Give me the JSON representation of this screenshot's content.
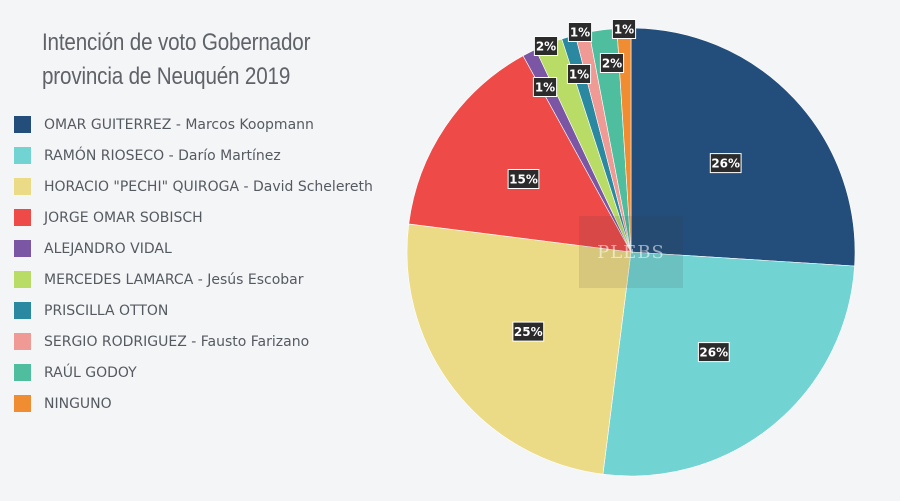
{
  "chart_data": {
    "type": "pie",
    "title": [
      "Intención de voto Gobernador",
      "provincia de Neuquén 2019"
    ],
    "watermark": "PLEBS",
    "legend_position": "left",
    "series": [
      {
        "name": "OMAR GUITERREZ - Marcos Koopmann",
        "value": 26,
        "label": "26%",
        "color": "#234e7c"
      },
      {
        "name": "RAMÓN RIOSECO - Darío Martínez",
        "value": 26,
        "label": "26%",
        "color": "#72d3d3"
      },
      {
        "name": "HORACIO \"PECHI\" QUIROGA - David Schelereth",
        "value": 25,
        "label": "25%",
        "color": "#ecdb86"
      },
      {
        "name": "JORGE OMAR SOBISCH",
        "value": 15,
        "label": "15%",
        "color": "#ed4a48"
      },
      {
        "name": "ALEJANDRO VIDAL",
        "value": 1,
        "label": "1%",
        "color": "#7b56a5"
      },
      {
        "name": "MERCEDES LAMARCA - Jesús Escobar",
        "value": 2,
        "label": "2%",
        "color": "#b9dc67"
      },
      {
        "name": "PRISCILLA OTTON",
        "value": 1,
        "label": "1%",
        "color": "#2a89a0"
      },
      {
        "name": "SERGIO RODRIGUEZ - Fausto Farizano",
        "value": 1,
        "label": "1%",
        "color": "#ef9a94"
      },
      {
        "name": "RAÚL GODOY",
        "value": 2,
        "label": "2%",
        "color": "#4ebe9e"
      },
      {
        "name": "NINGUNO",
        "value": 1,
        "label": "1%",
        "color": "#f08c32"
      }
    ]
  }
}
